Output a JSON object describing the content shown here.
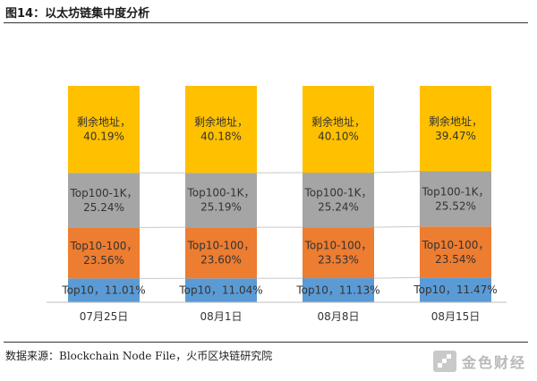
{
  "figure": {
    "title": "图14：以太坊链集中度分析",
    "source": "数据来源：Blockchain Node File，火币区块链研究院",
    "logo_text": "金色财经"
  },
  "colors": {
    "top10": "#5b9bd5",
    "top10_100": "#ed7d31",
    "top100_1k": "#a5a5a5",
    "remaining": "#ffc000"
  },
  "chart_data": {
    "type": "bar",
    "stacked": true,
    "categories": [
      "07月25日",
      "08月1日",
      "08月8日",
      "08月15日"
    ],
    "series": [
      {
        "name": "Top10",
        "values": [
          11.01,
          11.04,
          11.13,
          11.47
        ],
        "labels": [
          "Top10，11.01%",
          "Top10，11.04%",
          "Top10，11.13%",
          "Top10，11.47%"
        ]
      },
      {
        "name": "Top10-100",
        "values": [
          23.56,
          23.6,
          23.53,
          23.54
        ],
        "labels": [
          [
            "Top10-100，",
            "23.56%"
          ],
          [
            "Top10-100，",
            "23.60%"
          ],
          [
            "Top10-100，",
            "23.53%"
          ],
          [
            "Top10-100，",
            "23.54%"
          ]
        ]
      },
      {
        "name": "Top100-1K",
        "values": [
          25.24,
          25.19,
          25.24,
          25.52
        ],
        "labels": [
          [
            "Top100-1K，",
            "25.24%"
          ],
          [
            "Top100-1K，",
            "25.19%"
          ],
          [
            "Top100-1K，",
            "25.24%"
          ],
          [
            "Top100-1K，",
            "25.52%"
          ]
        ]
      },
      {
        "name": "剩余地址",
        "values": [
          40.19,
          40.18,
          40.1,
          39.47
        ],
        "labels": [
          [
            "剩余地址，",
            "40.19%"
          ],
          [
            "剩余地址，",
            "40.18%"
          ],
          [
            "剩余地址，",
            "40.10%"
          ],
          [
            "剩余地址，",
            "39.47%"
          ]
        ]
      }
    ],
    "ylim": [
      0,
      100
    ],
    "grid": false,
    "legend": "none"
  }
}
